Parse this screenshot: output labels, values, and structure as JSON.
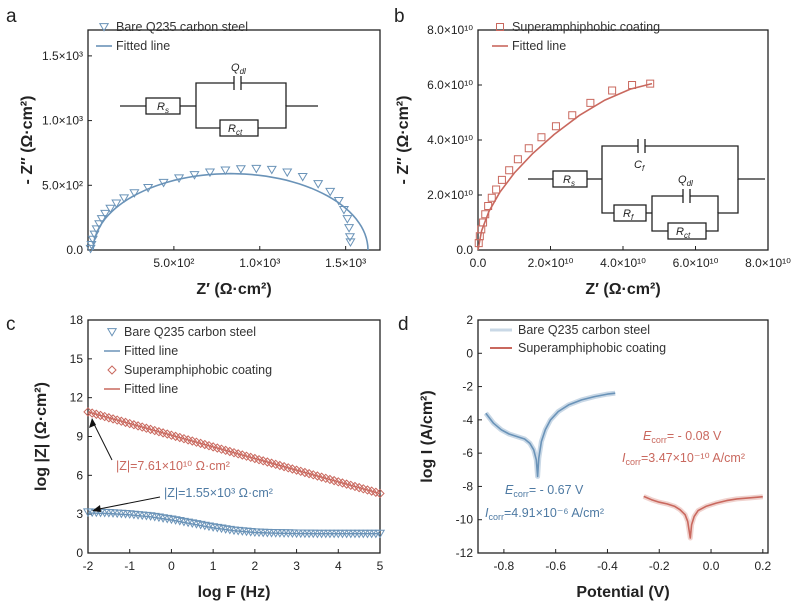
{
  "colors": {
    "blue": "#6a93b8",
    "red": "#c9685e",
    "blue_fill": "#c9d8e6",
    "red_fill": "#f0d3cf",
    "blue_dark": "#4e7aa3"
  },
  "panels": {
    "a": "a",
    "b": "b",
    "c": "c",
    "d": "d"
  },
  "circuit_a": {
    "rs": "R",
    "rs_sub": "s",
    "rct": "R",
    "rct_sub": "ct",
    "qdl": "Q",
    "qdl_sub": "dl"
  },
  "circuit_b": {
    "rs": "R",
    "rs_sub": "s",
    "cf": "C",
    "cf_sub": "f",
    "rf": "R",
    "rf_sub": "f",
    "qdl": "Q",
    "qdl_sub": "dl",
    "rct": "R",
    "rct_sub": "ct"
  },
  "chart_data": [
    {
      "id": "a",
      "type": "scatter",
      "xlabel": "Z′ (Ω·cm²)",
      "ylabel": "- Z″ (Ω·cm²)",
      "xlim": [
        0,
        1700
      ],
      "ylim": [
        0,
        1700
      ],
      "xticks": [
        {
          "v": 500,
          "l": "5.0×10²"
        },
        {
          "v": 1000,
          "l": "1.0×10³"
        },
        {
          "v": 1500,
          "l": "1.5×10³"
        }
      ],
      "yticks": [
        {
          "v": 0,
          "l": "0.0"
        },
        {
          "v": 500,
          "l": "5.0×10²"
        },
        {
          "v": 1000,
          "l": "1.0×10³"
        },
        {
          "v": 1500,
          "l": "1.5×10³"
        }
      ],
      "legend": [
        "Bare Q235 carbon steel",
        "Fitted line"
      ],
      "series": [
        {
          "name": "Bare Q235 carbon steel",
          "kind": "markers",
          "x": [
            15,
            20,
            28,
            38,
            50,
            65,
            80,
            100,
            130,
            165,
            210,
            270,
            350,
            440,
            530,
            620,
            710,
            800,
            890,
            980,
            1070,
            1160,
            1250,
            1340,
            1410,
            1460,
            1490,
            1510,
            1520,
            1525,
            1528
          ],
          "y": [
            10,
            40,
            80,
            120,
            160,
            200,
            240,
            280,
            320,
            360,
            400,
            440,
            480,
            520,
            555,
            580,
            600,
            615,
            625,
            628,
            620,
            600,
            565,
            510,
            450,
            380,
            310,
            240,
            170,
            100,
            60
          ]
        },
        {
          "name": "Fitted line",
          "kind": "arc",
          "x0": 30,
          "x1": 1630,
          "ypeak": 590
        }
      ]
    },
    {
      "id": "b",
      "type": "scatter",
      "xlabel": "Z′ (Ω·cm²)",
      "ylabel": "- Z″ (Ω·cm²)",
      "xlim": [
        0,
        8
      ],
      "ylim": [
        0,
        8
      ],
      "xticks": [
        {
          "v": 0,
          "l": "0.0"
        },
        {
          "v": 2,
          "l": "2.0×10¹⁰"
        },
        {
          "v": 4,
          "l": "4.0×10¹⁰"
        },
        {
          "v": 6,
          "l": "6.0×10¹⁰"
        },
        {
          "v": 8,
          "l": "8.0×10¹⁰"
        }
      ],
      "yticks": [
        {
          "v": 0,
          "l": "0.0"
        },
        {
          "v": 2,
          "l": "2.0×10¹⁰"
        },
        {
          "v": 4,
          "l": "4.0×10¹⁰"
        },
        {
          "v": 6,
          "l": "6.0×10¹⁰"
        },
        {
          "v": 8,
          "l": "8.0×10¹⁰"
        }
      ],
      "legend": [
        "Superamphiphobic coating",
        "Fitted line"
      ],
      "series": [
        {
          "name": "Superamphiphobic coating",
          "kind": "markers",
          "x": [
            0.02,
            0.05,
            0.09,
            0.14,
            0.2,
            0.28,
            0.38,
            0.5,
            0.66,
            0.86,
            1.1,
            1.4,
            1.75,
            2.15,
            2.6,
            3.1,
            3.7,
            4.25,
            4.75
          ],
          "y": [
            0.25,
            0.5,
            0.75,
            1.0,
            1.3,
            1.6,
            1.9,
            2.2,
            2.55,
            2.9,
            3.3,
            3.7,
            4.1,
            4.5,
            4.9,
            5.35,
            5.8,
            6.0,
            6.05
          ]
        },
        {
          "name": "Fitted line",
          "kind": "curve",
          "x": [
            0,
            0.1,
            0.3,
            0.6,
            1.0,
            1.5,
            2.1,
            2.8,
            3.5,
            4.2,
            4.8
          ],
          "y": [
            0,
            0.7,
            1.4,
            2.1,
            2.8,
            3.5,
            4.2,
            4.9,
            5.45,
            5.85,
            6.05
          ]
        }
      ]
    },
    {
      "id": "c",
      "type": "line",
      "xlabel": "log F (Hz)",
      "ylabel": "log |Z| (Ω·cm²)",
      "xlim": [
        -2,
        5
      ],
      "ylim": [
        0,
        18
      ],
      "xticks": [
        {
          "v": -2,
          "l": "-2"
        },
        {
          "v": -1,
          "l": "-1"
        },
        {
          "v": 0,
          "l": "0"
        },
        {
          "v": 1,
          "l": "1"
        },
        {
          "v": 2,
          "l": "2"
        },
        {
          "v": 3,
          "l": "3"
        },
        {
          "v": 4,
          "l": "4"
        },
        {
          "v": 5,
          "l": "5"
        }
      ],
      "yticks": [
        {
          "v": 0,
          "l": "0"
        },
        {
          "v": 3,
          "l": "3"
        },
        {
          "v": 6,
          "l": "6"
        },
        {
          "v": 9,
          "l": "9"
        },
        {
          "v": 12,
          "l": "12"
        },
        {
          "v": 15,
          "l": "15"
        },
        {
          "v": 18,
          "l": "18"
        }
      ],
      "legend": [
        "Bare Q235 carbon steel",
        "Fitted line",
        "Superamphiphobic coating",
        "Fitted line"
      ],
      "annotations": [
        {
          "text": "|Z|=7.61×10¹⁰ Ω·cm²",
          "color": "red"
        },
        {
          "text": "|Z|=1.55×10³ Ω·cm²",
          "color": "blue"
        }
      ],
      "series": [
        {
          "name": "Bare Q235 carbon steel",
          "kind": "markers",
          "x": [
            -2,
            -1.5,
            -1,
            -0.5,
            0,
            0.5,
            1,
            1.5,
            2,
            2.5,
            3,
            3.5,
            4,
            4.5,
            5
          ],
          "y": [
            3.15,
            3.1,
            3.0,
            2.85,
            2.6,
            2.3,
            2.0,
            1.75,
            1.6,
            1.55,
            1.52,
            1.5,
            1.5,
            1.5,
            1.5
          ]
        },
        {
          "name": "Fitted line (bare)",
          "kind": "curve",
          "x": [
            -2,
            -1.5,
            -1,
            -0.5,
            0,
            0.5,
            1,
            1.5,
            2,
            2.5,
            3,
            3.5,
            4,
            4.5,
            5
          ],
          "y": [
            3.1,
            3.05,
            2.95,
            2.8,
            2.55,
            2.25,
            1.95,
            1.72,
            1.58,
            1.53,
            1.5,
            1.49,
            1.49,
            1.49,
            1.49
          ]
        },
        {
          "name": "Superamphiphobic coating",
          "kind": "markers",
          "x": [
            -2,
            -1.5,
            -1,
            -0.5,
            0,
            0.5,
            1,
            1.5,
            2,
            2.5,
            3,
            3.5,
            4,
            4.5,
            5
          ],
          "y": [
            10.9,
            10.45,
            10.0,
            9.55,
            9.1,
            8.65,
            8.2,
            7.75,
            7.3,
            6.85,
            6.4,
            5.95,
            5.5,
            5.05,
            4.6
          ]
        },
        {
          "name": "Fitted line (coating)",
          "kind": "curve",
          "x": [
            -2,
            5
          ],
          "y": [
            10.9,
            4.6
          ]
        }
      ]
    },
    {
      "id": "d",
      "type": "line",
      "xlabel": "Potential (V)",
      "ylabel": "log I (A/cm²)",
      "xlim": [
        -0.9,
        0.22
      ],
      "ylim": [
        -12,
        2
      ],
      "xticks": [
        {
          "v": -0.8,
          "l": "-0.8"
        },
        {
          "v": -0.6,
          "l": "-0.6"
        },
        {
          "v": -0.4,
          "l": "-0.4"
        },
        {
          "v": -0.2,
          "l": "-0.2"
        },
        {
          "v": 0.0,
          "l": "0.0"
        },
        {
          "v": 0.2,
          "l": "0.2"
        }
      ],
      "yticks": [
        {
          "v": -12,
          "l": "-12"
        },
        {
          "v": -10,
          "l": "-10"
        },
        {
          "v": -8,
          "l": "-8"
        },
        {
          "v": -6,
          "l": "-6"
        },
        {
          "v": -4,
          "l": "-4"
        },
        {
          "v": -2,
          "l": "-2"
        },
        {
          "v": 0,
          "l": "0"
        },
        {
          "v": 2,
          "l": "2"
        }
      ],
      "legend": [
        "Bare Q235 carbon steel",
        "Superamphiphobic coating"
      ],
      "annotations": [
        {
          "text": "E",
          "sub": "corr",
          "rest": "= - 0.08 V",
          "color": "red"
        },
        {
          "text": "I",
          "sub": "corr",
          "rest": "=3.47×10⁻¹⁰ A/cm²",
          "color": "red"
        },
        {
          "text": "E",
          "sub": "corr",
          "rest": "= - 0.67 V",
          "color": "blue"
        },
        {
          "text": "I",
          "sub": "corr",
          "rest": "=4.91×10⁻⁶ A/cm²",
          "color": "blue"
        }
      ],
      "series": [
        {
          "name": "Bare Q235 carbon steel",
          "x": [
            -0.87,
            -0.84,
            -0.81,
            -0.78,
            -0.75,
            -0.72,
            -0.7,
            -0.685,
            -0.675,
            -0.67,
            -0.665,
            -0.655,
            -0.64,
            -0.62,
            -0.59,
            -0.55,
            -0.5,
            -0.45,
            -0.4,
            -0.37
          ],
          "y": [
            -3.6,
            -4.2,
            -4.6,
            -4.85,
            -5.0,
            -5.15,
            -5.4,
            -5.8,
            -6.4,
            -7.4,
            -6.3,
            -5.3,
            -4.6,
            -4.0,
            -3.5,
            -3.1,
            -2.8,
            -2.6,
            -2.45,
            -2.4
          ]
        },
        {
          "name": "Superamphiphobic coating",
          "x": [
            -0.26,
            -0.23,
            -0.2,
            -0.17,
            -0.14,
            -0.12,
            -0.1,
            -0.09,
            -0.085,
            -0.08,
            -0.075,
            -0.065,
            -0.05,
            -0.02,
            0.02,
            0.06,
            0.1,
            0.14,
            0.18,
            0.2
          ],
          "y": [
            -8.6,
            -8.8,
            -8.95,
            -9.05,
            -9.2,
            -9.4,
            -9.7,
            -10.1,
            -10.6,
            -11.1,
            -10.3,
            -9.8,
            -9.45,
            -9.2,
            -9.0,
            -8.85,
            -8.75,
            -8.7,
            -8.65,
            -8.62
          ]
        }
      ]
    }
  ]
}
